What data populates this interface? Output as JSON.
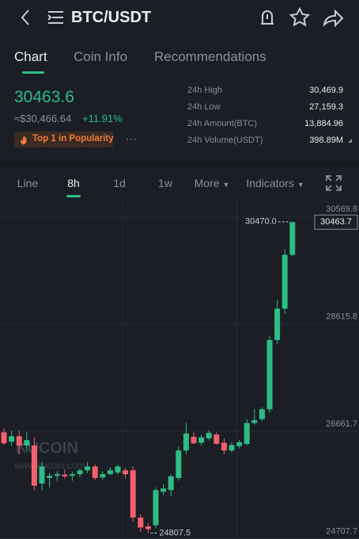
{
  "header": {
    "title": "BTC/USDT"
  },
  "tabs": [
    "Chart",
    "Coin Info",
    "Recommendations"
  ],
  "ticker": {
    "price": "30463.6",
    "approx": "≈$30,466.64",
    "change": "+11.91%",
    "badge": "Top 1 in Popularity",
    "stats": [
      {
        "label": "24h High",
        "value": "30,469.9"
      },
      {
        "label": "24h Low",
        "value": "27,159.3"
      },
      {
        "label": "24h Amount(BTC)",
        "value": "13,884.96"
      },
      {
        "label": "24h Volume(USDT)",
        "value": "398.89M"
      }
    ]
  },
  "intervals": [
    "Line",
    "8h",
    "1d",
    "1w",
    "More",
    "Indicators"
  ],
  "chart_data": {
    "type": "candlestick",
    "watermark": "KUCOIN",
    "watermark_url": "www.kucoin.com",
    "up_color": "#2ebd85",
    "down_color": "#f0616d",
    "ylim": [
      24700,
      30900
    ],
    "yticks": [
      30569.8,
      28615.8,
      26661.7,
      24707.7
    ],
    "high_label": "30470.0",
    "low_label": "24807.5",
    "last_label": "30463.7",
    "open": [
      26641,
      26470,
      26570,
      26400,
      26400,
      25710,
      25810,
      25850,
      25870,
      25850,
      25880,
      25950,
      26020,
      25820,
      25880,
      25910,
      25950,
      25950,
      25090,
      24930,
      24950,
      25560,
      25590,
      25810,
      26310,
      26560,
      26450,
      26530,
      26600,
      26450,
      26310,
      26390,
      26430,
      26810,
      26880,
      27060,
      28320,
      28890,
      29870
    ],
    "high": [
      26713,
      26670,
      26670,
      26650,
      26550,
      26100,
      25900,
      25930,
      25960,
      25920,
      25980,
      26100,
      26060,
      25930,
      26000,
      26050,
      26000,
      26020,
      25150,
      24990,
      25640,
      25700,
      25880,
      26380,
      26810,
      26640,
      26600,
      26680,
      26640,
      26530,
      26460,
      26500,
      26880,
      27060,
      27100,
      28390,
      29040,
      29970,
      30470
    ],
    "low": [
      26412,
      26400,
      26240,
      26300,
      25590,
      25590,
      25640,
      25760,
      25800,
      25760,
      25830,
      25900,
      25780,
      25780,
      25860,
      25880,
      25800,
      25020,
      24830,
      24807.5,
      24900,
      25500,
      25480,
      25760,
      26240,
      26430,
      26400,
      26490,
      26420,
      26240,
      26280,
      26350,
      26400,
      26780,
      26840,
      27000,
      28250,
      28800,
      29850
    ],
    "close": [
      26441,
      26570,
      26400,
      26500,
      25670,
      26020,
      25850,
      25880,
      25840,
      25880,
      25950,
      26020,
      25810,
      25880,
      25950,
      26020,
      25880,
      25090,
      24910,
      24880,
      25590,
      25620,
      25840,
      26310,
      26620,
      26440,
      26550,
      26630,
      26430,
      26310,
      26410,
      26460,
      26810,
      26860,
      27060,
      28320,
      28890,
      29870,
      30463.7
    ]
  }
}
